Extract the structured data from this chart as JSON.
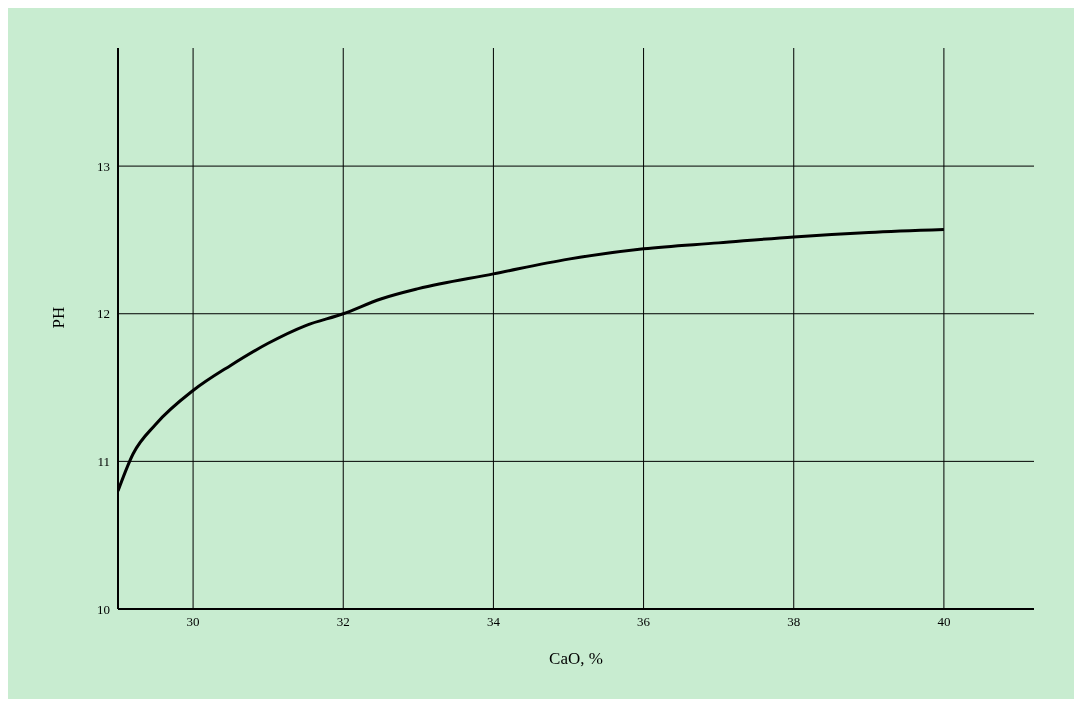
{
  "chart_data": {
    "type": "line",
    "xlabel": "CaO, %",
    "ylabel": "PH",
    "x": [
      29,
      29.2,
      29.5,
      30,
      30.5,
      31,
      31.5,
      32,
      32.5,
      33,
      34,
      35,
      36,
      37,
      38,
      39,
      40
    ],
    "series": [
      {
        "color": "#000000",
        "values": [
          10.8,
          11.05,
          11.25,
          11.48,
          11.65,
          11.8,
          11.92,
          12.0,
          12.1,
          12.17,
          12.27,
          12.37,
          12.44,
          12.48,
          12.52,
          12.55,
          12.57
        ]
      }
    ],
    "xlim": [
      29,
      41.2
    ],
    "xticks": [
      30,
      32,
      34,
      36,
      38,
      40
    ],
    "ylim": [
      10,
      13.8
    ],
    "yticks": [
      10,
      11,
      12,
      13
    ],
    "grid": true,
    "marker": "none",
    "line_style": "solid"
  }
}
